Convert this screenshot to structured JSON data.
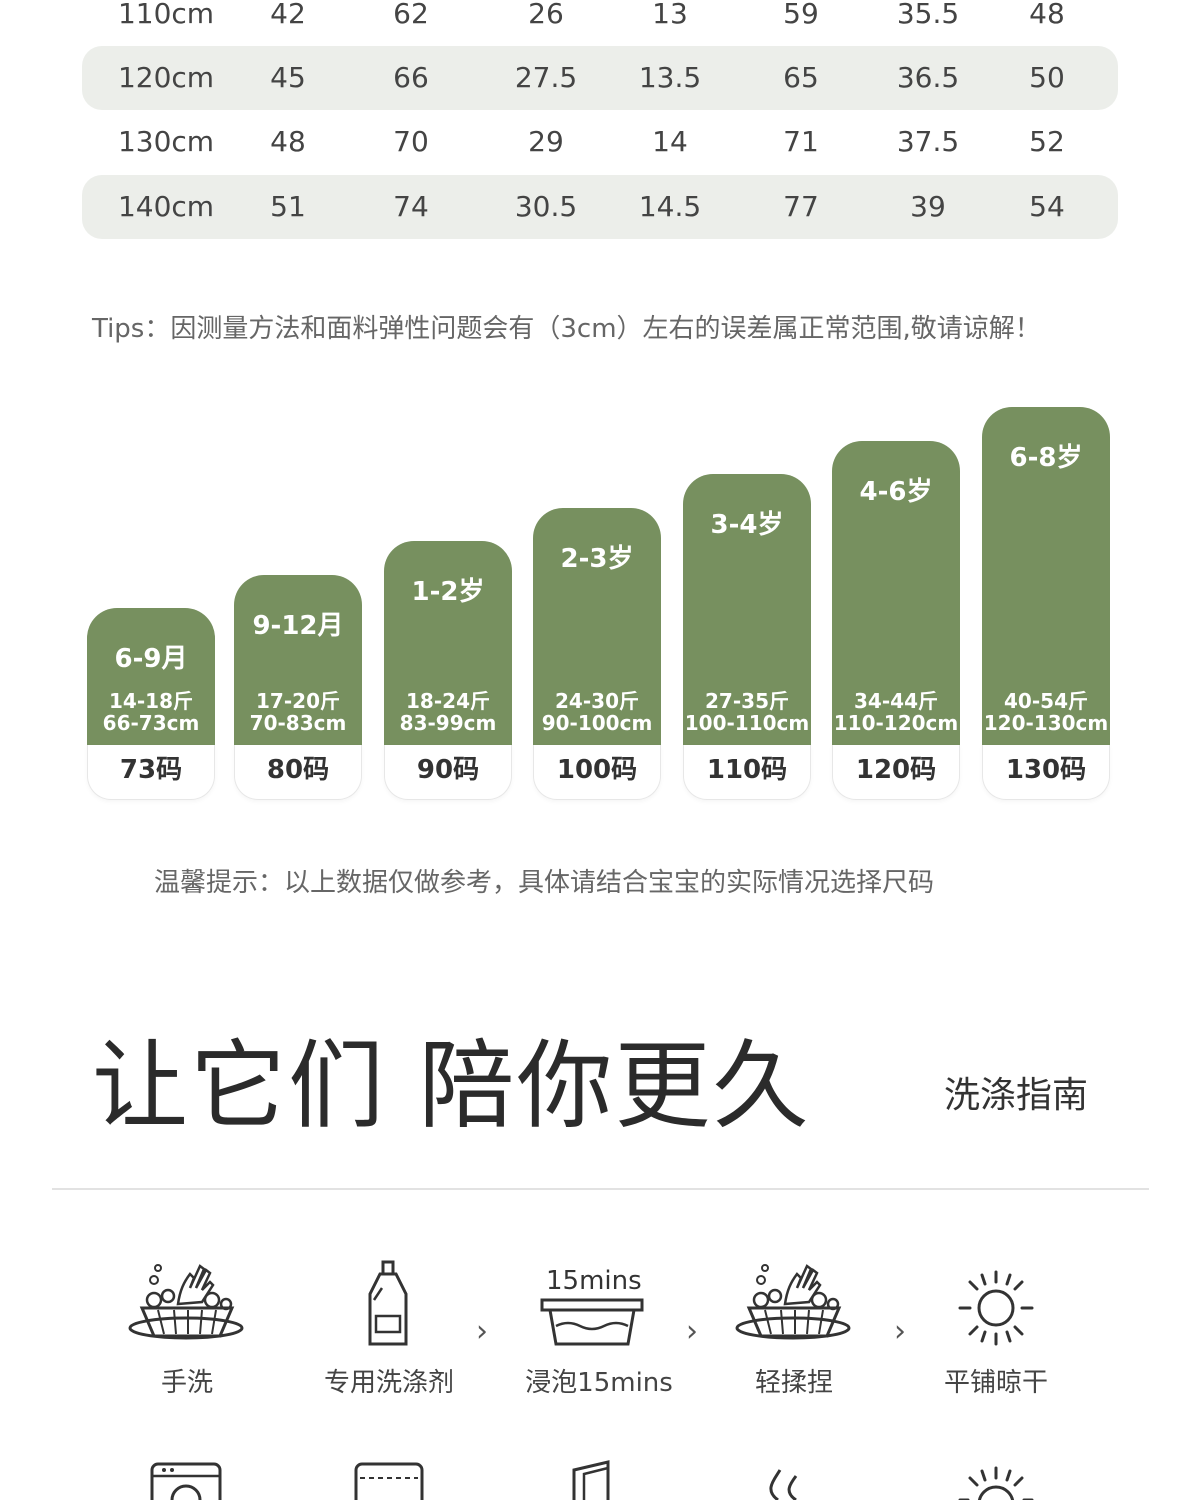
{
  "size_table": {
    "rows": [
      {
        "size": "110cm",
        "values": [
          "42",
          "62",
          "26",
          "13",
          "59",
          "35.5",
          "48"
        ],
        "shaded": false
      },
      {
        "size": "120cm",
        "values": [
          "45",
          "66",
          "27.5",
          "13.5",
          "65",
          "36.5",
          "50"
        ],
        "shaded": true
      },
      {
        "size": "130cm",
        "values": [
          "48",
          "70",
          "29",
          "14",
          "71",
          "37.5",
          "52"
        ],
        "shaded": false
      },
      {
        "size": "140cm",
        "values": [
          "51",
          "74",
          "30.5",
          "14.5",
          "77",
          "39",
          "54"
        ],
        "shaded": true
      }
    ]
  },
  "tips": "Tips：因测量方法和面料弹性问题会有（3cm）左右的误差属正常范围,敬请谅解！",
  "age_chart": {
    "bar_color": "#77905f",
    "columns": [
      {
        "age": "6-9月",
        "weight": "14-18斤",
        "height": "66-73cm",
        "code": "73码",
        "level": 1
      },
      {
        "age": "9-12月",
        "weight": "17-20斤",
        "height": "70-83cm",
        "code": "80码",
        "level": 2
      },
      {
        "age": "1-2岁",
        "weight": "18-24斤",
        "height": "83-99cm",
        "code": "90码",
        "level": 3
      },
      {
        "age": "2-3岁",
        "weight": "24-30斤",
        "height": "90-100cm",
        "code": "100码",
        "level": 4
      },
      {
        "age": "3-4岁",
        "weight": "27-35斤",
        "height": "100-110cm",
        "code": "110码",
        "level": 5
      },
      {
        "age": "4-6岁",
        "weight": "34-44斤",
        "height": "110-120cm",
        "code": "120码",
        "level": 6
      },
      {
        "age": "6-8岁",
        "weight": "40-54斤",
        "height": "120-130cm",
        "code": "130码",
        "level": 7
      }
    ]
  },
  "hint": "温馨提示：以上数据仅做参考，具体请结合宝宝的实际情况选择尺码",
  "care": {
    "headline": "让它们 陪你更久",
    "subhead": "洗涤指南",
    "timer_text": "15mins",
    "steps": [
      {
        "label": "手洗",
        "icon": "hand-wash-icon"
      },
      {
        "label": "专用洗涤剂",
        "icon": "detergent-bottle-icon"
      },
      {
        "label": "浸泡15mins",
        "icon": "soak-basin-icon"
      },
      {
        "label": "轻揉捏",
        "icon": "gentle-knead-icon"
      },
      {
        "label": "平铺晾干",
        "icon": "sun-dry-icon"
      }
    ],
    "arrow": "›",
    "bottom_icons": [
      "washing-machine-icon",
      "dryer-icon",
      "door-icon",
      "steam-icon",
      "sun-icon"
    ]
  }
}
